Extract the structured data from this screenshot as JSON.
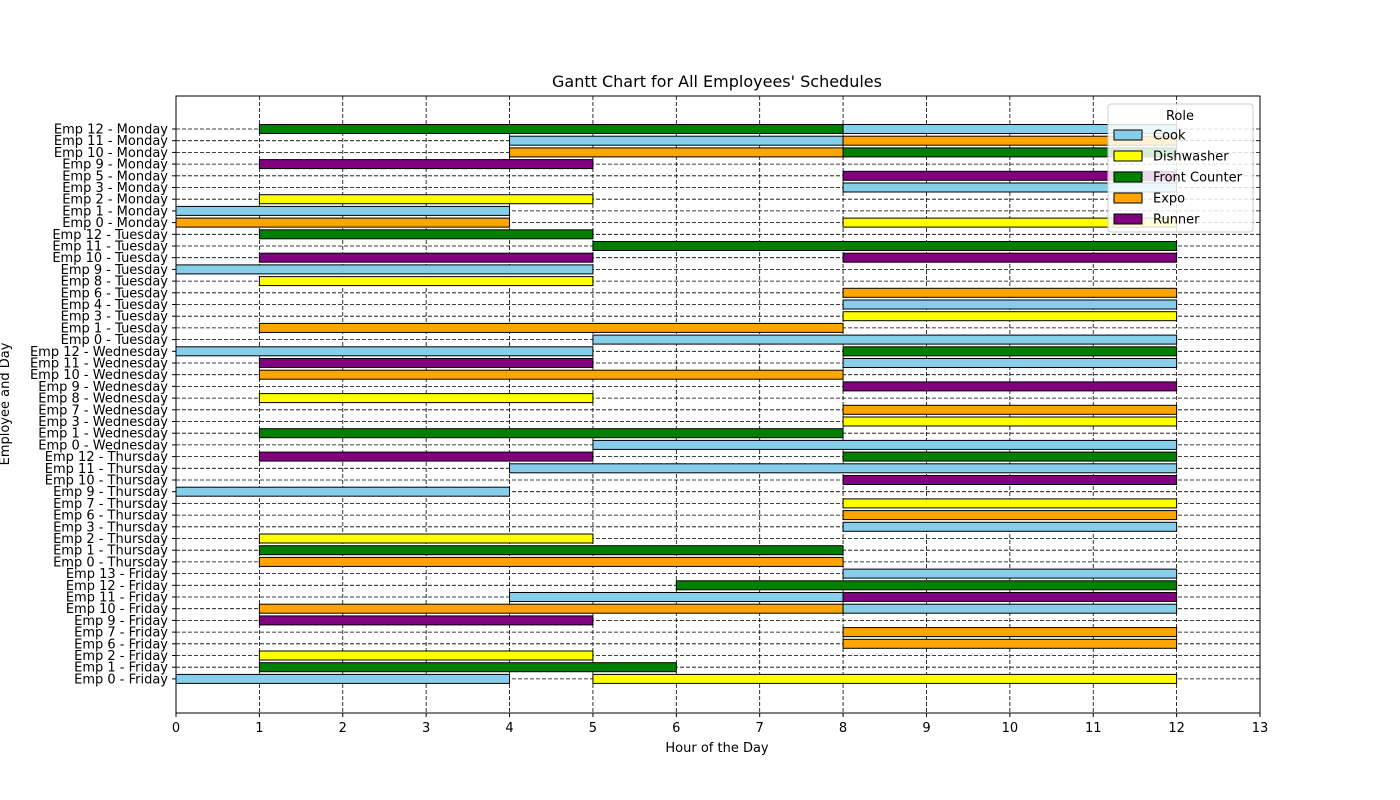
{
  "chart_data": {
    "type": "gantt",
    "title": "Gantt Chart for All Employees' Schedules",
    "xlabel": "Hour of the Day",
    "ylabel": "Employee and Day",
    "xlim": [
      0,
      13
    ],
    "xticks": [
      0,
      1,
      2,
      3,
      4,
      5,
      6,
      7,
      8,
      9,
      10,
      11,
      12,
      13
    ],
    "grid": true,
    "grid_style": "dashed",
    "legend": {
      "title": "Role",
      "placement": "top-right",
      "entries": [
        {
          "role": "Cook",
          "color": "#87ceeb"
        },
        {
          "role": "Dishwasher",
          "color": "#ffff00"
        },
        {
          "role": "Front Counter",
          "color": "#008000"
        },
        {
          "role": "Expo",
          "color": "#ffa500"
        },
        {
          "role": "Runner",
          "color": "#800080"
        }
      ]
    },
    "rows": [
      {
        "label": "Emp 12 - Monday",
        "bars": [
          {
            "start": 1,
            "end": 8,
            "role": "Front Counter"
          },
          {
            "start": 8,
            "end": 12,
            "role": "Cook"
          }
        ]
      },
      {
        "label": "Emp 11 - Monday",
        "bars": [
          {
            "start": 4,
            "end": 8,
            "role": "Cook"
          },
          {
            "start": 8,
            "end": 12,
            "role": "Expo"
          }
        ]
      },
      {
        "label": "Emp 10 - Monday",
        "bars": [
          {
            "start": 4,
            "end": 8,
            "role": "Expo"
          },
          {
            "start": 8,
            "end": 12,
            "role": "Front Counter"
          }
        ]
      },
      {
        "label": "Emp 9 - Monday",
        "bars": [
          {
            "start": 1,
            "end": 5,
            "role": "Runner"
          }
        ]
      },
      {
        "label": "Emp 5 - Monday",
        "bars": [
          {
            "start": 8,
            "end": 12,
            "role": "Runner"
          }
        ]
      },
      {
        "label": "Emp 3 - Monday",
        "bars": [
          {
            "start": 8,
            "end": 12,
            "role": "Cook"
          }
        ]
      },
      {
        "label": "Emp 2 - Monday",
        "bars": [
          {
            "start": 1,
            "end": 5,
            "role": "Dishwasher"
          }
        ]
      },
      {
        "label": "Emp 1 - Monday",
        "bars": [
          {
            "start": 0,
            "end": 4,
            "role": "Cook"
          }
        ]
      },
      {
        "label": "Emp 0 - Monday",
        "bars": [
          {
            "start": 0,
            "end": 4,
            "role": "Expo"
          },
          {
            "start": 8,
            "end": 12,
            "role": "Dishwasher"
          }
        ]
      },
      {
        "label": "Emp 12 - Tuesday",
        "bars": [
          {
            "start": 1,
            "end": 5,
            "role": "Front Counter"
          }
        ]
      },
      {
        "label": "Emp 11 - Tuesday",
        "bars": [
          {
            "start": 5,
            "end": 12,
            "role": "Front Counter"
          }
        ]
      },
      {
        "label": "Emp 10 - Tuesday",
        "bars": [
          {
            "start": 1,
            "end": 5,
            "role": "Runner"
          },
          {
            "start": 8,
            "end": 12,
            "role": "Runner"
          }
        ]
      },
      {
        "label": "Emp 9 - Tuesday",
        "bars": [
          {
            "start": 0,
            "end": 5,
            "role": "Cook"
          }
        ]
      },
      {
        "label": "Emp 8 - Tuesday",
        "bars": [
          {
            "start": 1,
            "end": 5,
            "role": "Dishwasher"
          }
        ]
      },
      {
        "label": "Emp 6 - Tuesday",
        "bars": [
          {
            "start": 8,
            "end": 12,
            "role": "Expo"
          }
        ]
      },
      {
        "label": "Emp 4 - Tuesday",
        "bars": [
          {
            "start": 8,
            "end": 12,
            "role": "Cook"
          }
        ]
      },
      {
        "label": "Emp 3 - Tuesday",
        "bars": [
          {
            "start": 8,
            "end": 12,
            "role": "Dishwasher"
          }
        ]
      },
      {
        "label": "Emp 1 - Tuesday",
        "bars": [
          {
            "start": 1,
            "end": 8,
            "role": "Expo"
          }
        ]
      },
      {
        "label": "Emp 0 - Tuesday",
        "bars": [
          {
            "start": 5,
            "end": 12,
            "role": "Cook"
          }
        ]
      },
      {
        "label": "Emp 12 - Wednesday",
        "bars": [
          {
            "start": 0,
            "end": 5,
            "role": "Cook"
          },
          {
            "start": 8,
            "end": 12,
            "role": "Front Counter"
          }
        ]
      },
      {
        "label": "Emp 11 - Wednesday",
        "bars": [
          {
            "start": 1,
            "end": 5,
            "role": "Runner"
          },
          {
            "start": 8,
            "end": 12,
            "role": "Cook"
          }
        ]
      },
      {
        "label": "Emp 10 - Wednesday",
        "bars": [
          {
            "start": 1,
            "end": 8,
            "role": "Expo"
          }
        ]
      },
      {
        "label": "Emp 9 - Wednesday",
        "bars": [
          {
            "start": 8,
            "end": 12,
            "role": "Runner"
          }
        ]
      },
      {
        "label": "Emp 8 - Wednesday",
        "bars": [
          {
            "start": 1,
            "end": 5,
            "role": "Dishwasher"
          }
        ]
      },
      {
        "label": "Emp 7 - Wednesday",
        "bars": [
          {
            "start": 8,
            "end": 12,
            "role": "Expo"
          }
        ]
      },
      {
        "label": "Emp 3 - Wednesday",
        "bars": [
          {
            "start": 8,
            "end": 12,
            "role": "Dishwasher"
          }
        ]
      },
      {
        "label": "Emp 1 - Wednesday",
        "bars": [
          {
            "start": 1,
            "end": 8,
            "role": "Front Counter"
          }
        ]
      },
      {
        "label": "Emp 0 - Wednesday",
        "bars": [
          {
            "start": 5,
            "end": 12,
            "role": "Cook"
          }
        ]
      },
      {
        "label": "Emp 12 - Thursday",
        "bars": [
          {
            "start": 1,
            "end": 5,
            "role": "Runner"
          },
          {
            "start": 8,
            "end": 12,
            "role": "Front Counter"
          }
        ]
      },
      {
        "label": "Emp 11 - Thursday",
        "bars": [
          {
            "start": 4,
            "end": 12,
            "role": "Cook"
          }
        ]
      },
      {
        "label": "Emp 10 - Thursday",
        "bars": [
          {
            "start": 8,
            "end": 12,
            "role": "Runner"
          }
        ]
      },
      {
        "label": "Emp 9 - Thursday",
        "bars": [
          {
            "start": 0,
            "end": 4,
            "role": "Cook"
          }
        ]
      },
      {
        "label": "Emp 7 - Thursday",
        "bars": [
          {
            "start": 8,
            "end": 12,
            "role": "Dishwasher"
          }
        ]
      },
      {
        "label": "Emp 6 - Thursday",
        "bars": [
          {
            "start": 8,
            "end": 12,
            "role": "Expo"
          }
        ]
      },
      {
        "label": "Emp 3 - Thursday",
        "bars": [
          {
            "start": 8,
            "end": 12,
            "role": "Cook"
          }
        ]
      },
      {
        "label": "Emp 2 - Thursday",
        "bars": [
          {
            "start": 1,
            "end": 5,
            "role": "Dishwasher"
          }
        ]
      },
      {
        "label": "Emp 1 - Thursday",
        "bars": [
          {
            "start": 1,
            "end": 8,
            "role": "Front Counter"
          }
        ]
      },
      {
        "label": "Emp 0 - Thursday",
        "bars": [
          {
            "start": 1,
            "end": 8,
            "role": "Expo"
          }
        ]
      },
      {
        "label": "Emp 13 - Friday",
        "bars": [
          {
            "start": 8,
            "end": 12,
            "role": "Cook"
          }
        ]
      },
      {
        "label": "Emp 12 - Friday",
        "bars": [
          {
            "start": 6,
            "end": 12,
            "role": "Front Counter"
          }
        ]
      },
      {
        "label": "Emp 11 - Friday",
        "bars": [
          {
            "start": 4,
            "end": 8,
            "role": "Cook"
          },
          {
            "start": 8,
            "end": 12,
            "role": "Runner"
          }
        ]
      },
      {
        "label": "Emp 10 - Friday",
        "bars": [
          {
            "start": 1,
            "end": 8,
            "role": "Expo"
          },
          {
            "start": 8,
            "end": 12,
            "role": "Cook"
          }
        ]
      },
      {
        "label": "Emp 9 - Friday",
        "bars": [
          {
            "start": 1,
            "end": 5,
            "role": "Runner"
          }
        ]
      },
      {
        "label": "Emp 7 - Friday",
        "bars": [
          {
            "start": 8,
            "end": 12,
            "role": "Expo"
          }
        ]
      },
      {
        "label": "Emp 6 - Friday",
        "bars": [
          {
            "start": 8,
            "end": 12,
            "role": "Expo"
          }
        ]
      },
      {
        "label": "Emp 2 - Friday",
        "bars": [
          {
            "start": 1,
            "end": 5,
            "role": "Dishwasher"
          }
        ]
      },
      {
        "label": "Emp 1 - Friday",
        "bars": [
          {
            "start": 1,
            "end": 6,
            "role": "Front Counter"
          }
        ]
      },
      {
        "label": "Emp 0 - Friday",
        "bars": [
          {
            "start": 0,
            "end": 4,
            "role": "Cook"
          },
          {
            "start": 5,
            "end": 12,
            "role": "Dishwasher"
          }
        ]
      }
    ]
  }
}
